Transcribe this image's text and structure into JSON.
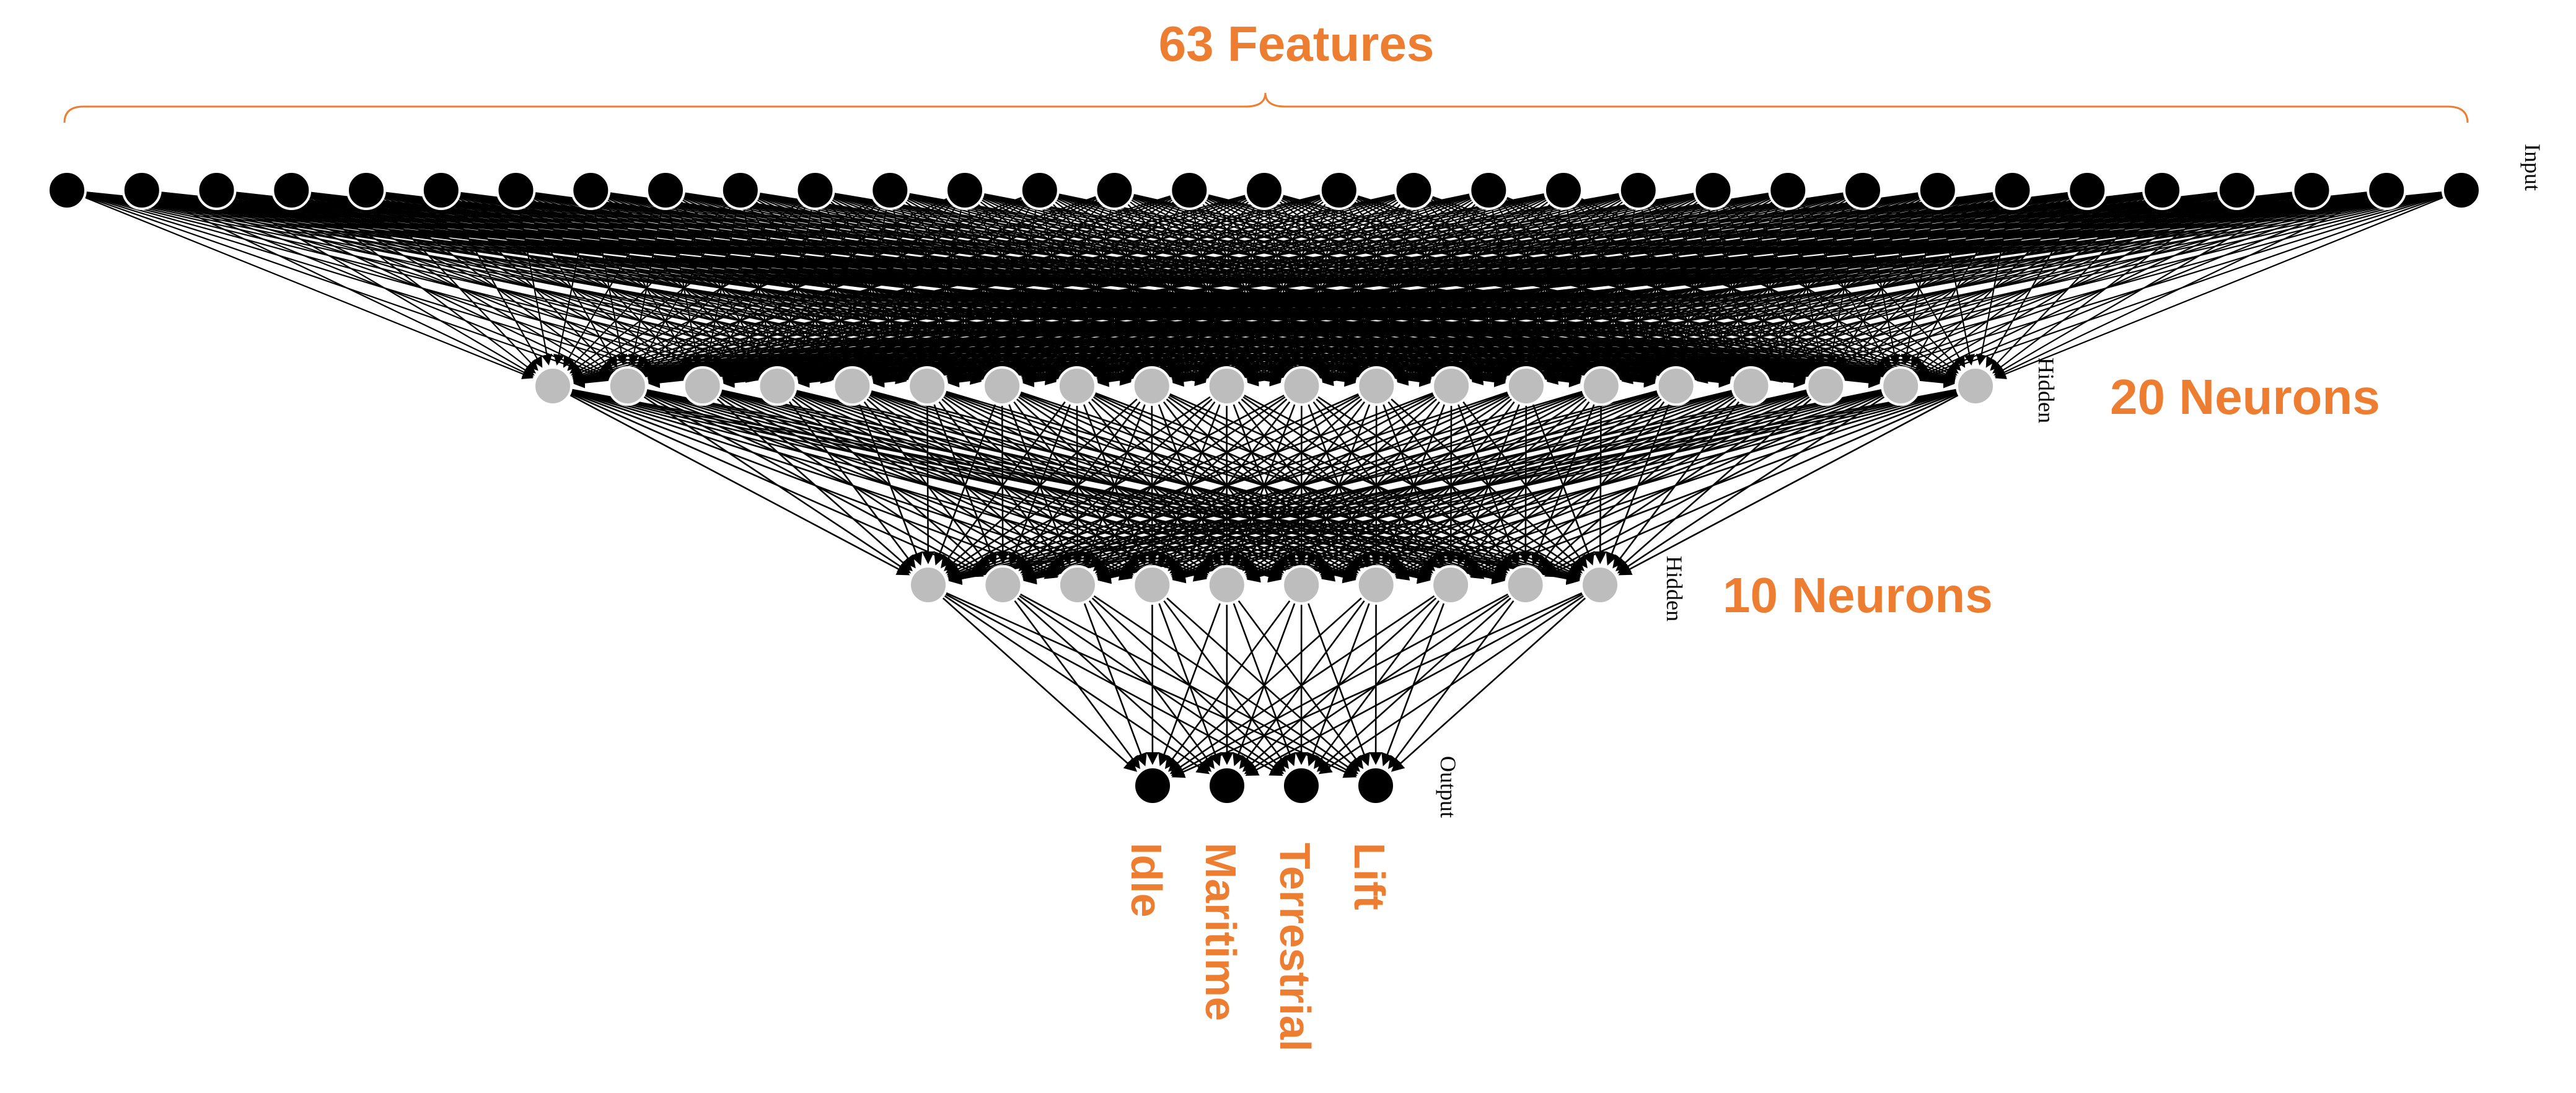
{
  "diagram": {
    "title": "63 Features",
    "layers": [
      {
        "role": "Input",
        "side_label": "",
        "node_color": "#000000",
        "node_count_drawn": 33
      },
      {
        "role": "Hidden",
        "side_label": "20 Neurons",
        "node_color": "#BDBDBD",
        "node_count_drawn": 20
      },
      {
        "role": "Hidden",
        "side_label": "10 Neurons",
        "node_color": "#BDBDBD",
        "node_count_drawn": 10
      },
      {
        "role": "Output",
        "side_label": "",
        "node_color": "#000000",
        "node_count_drawn": 4
      }
    ],
    "outputs": [
      "Idle",
      "Maritime",
      "Terrestrial",
      "Lift"
    ],
    "colors": {
      "accent": "#ED7D31",
      "edge": "#000000",
      "node_dark": "#000000",
      "node_hidden": "#BDBDBD"
    }
  }
}
